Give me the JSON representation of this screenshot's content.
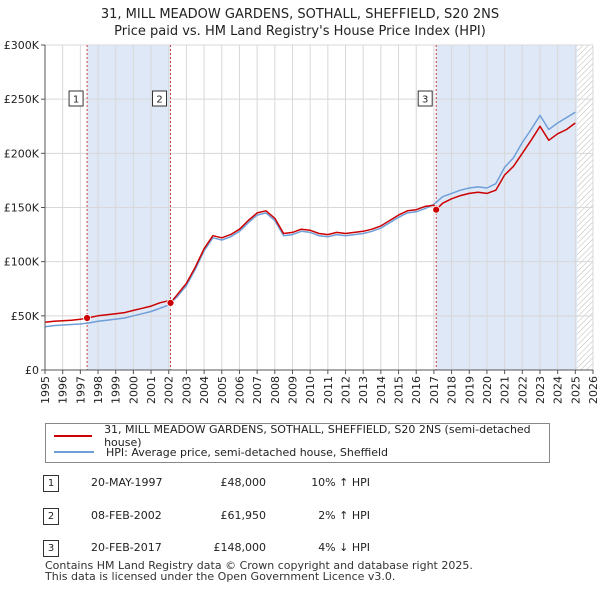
{
  "header": {
    "title_line1": "31, MILL MEADOW GARDENS, SOTHALL, SHEFFIELD, S20 2NS",
    "title_line2": "Price paid vs. HM Land Registry's House Price Index (HPI)"
  },
  "chart_data": {
    "type": "line",
    "title": "31, MILL MEADOW GARDENS, SOTHALL, SHEFFIELD, S20 2NS",
    "subtitle": "Price paid vs. HM Land Registry's House Price Index (HPI)",
    "xlabel": "",
    "ylabel": "",
    "xlim": [
      1995,
      2026
    ],
    "ylim": [
      0,
      300000
    ],
    "yticks": [
      0,
      50000,
      100000,
      150000,
      200000,
      250000,
      300000
    ],
    "ytick_labels": [
      "£0",
      "£50K",
      "£100K",
      "£150K",
      "£200K",
      "£250K",
      "£300K"
    ],
    "xticks": [
      1995,
      1996,
      1997,
      1998,
      1999,
      2000,
      2001,
      2002,
      2003,
      2004,
      2005,
      2006,
      2007,
      2008,
      2009,
      2010,
      2011,
      2012,
      2013,
      2014,
      2015,
      2016,
      2017,
      2018,
      2019,
      2020,
      2021,
      2022,
      2023,
      2024,
      2025,
      2026
    ],
    "xtick_labels": [
      "1995",
      "1996",
      "1997",
      "1998",
      "1999",
      "2000",
      "2001",
      "2002",
      "2003",
      "2004",
      "2005",
      "2006",
      "2007",
      "2008",
      "2009",
      "2010",
      "2011",
      "2012",
      "2013",
      "2014",
      "2015",
      "2016",
      "2017",
      "2018",
      "2019",
      "2020",
      "2021",
      "2022",
      "2023",
      "2024",
      "2025",
      "2026"
    ],
    "grid": true,
    "shaded_periods": [
      [
        1997.38,
        2002.1
      ],
      [
        2017.13,
        2025.1
      ]
    ],
    "forecast_hatch_start": 2025.1,
    "series": [
      {
        "name": "31, MILL MEADOW GARDENS, SOTHALL, SHEFFIELD, S20 2NS (semi-detached house)",
        "color": "#cc0000",
        "x": [
          1995.0,
          1995.5,
          1996.0,
          1996.5,
          1997.0,
          1997.38,
          1998.0,
          1998.5,
          1999.0,
          1999.5,
          2000.0,
          2000.5,
          2001.0,
          2001.5,
          2002.0,
          2002.1,
          2002.5,
          2003.0,
          2003.5,
          2004.0,
          2004.5,
          2005.0,
          2005.5,
          2006.0,
          2006.5,
          2007.0,
          2007.5,
          2008.0,
          2008.5,
          2009.0,
          2009.5,
          2010.0,
          2010.5,
          2011.0,
          2011.5,
          2012.0,
          2012.5,
          2013.0,
          2013.5,
          2014.0,
          2014.5,
          2015.0,
          2015.5,
          2016.0,
          2016.5,
          2017.0,
          2017.13,
          2017.5,
          2018.0,
          2018.5,
          2019.0,
          2019.5,
          2020.0,
          2020.5,
          2021.0,
          2021.5,
          2022.0,
          2022.5,
          2023.0,
          2023.5,
          2024.0,
          2024.5,
          2025.0
        ],
        "values": [
          44000,
          45000,
          45500,
          46000,
          46800,
          48000,
          50000,
          51000,
          52000,
          53000,
          55000,
          57000,
          59000,
          62000,
          64000,
          61950,
          70000,
          80000,
          95000,
          112000,
          124000,
          122000,
          125000,
          130000,
          138000,
          145000,
          147000,
          140000,
          126000,
          127000,
          130000,
          129000,
          126000,
          125000,
          127000,
          126000,
          127000,
          128000,
          130000,
          133000,
          138000,
          143000,
          147000,
          148000,
          151000,
          152000,
          148000,
          154000,
          158000,
          161000,
          163000,
          164000,
          163000,
          166000,
          180000,
          188000,
          200000,
          212000,
          225000,
          212000,
          218000,
          222000,
          228000
        ]
      },
      {
        "name": "HPI: Average price, semi-detached house, Sheffield",
        "color": "#6f9fd8",
        "x": [
          1995.0,
          1995.5,
          1996.0,
          1996.5,
          1997.0,
          1997.5,
          1998.0,
          1998.5,
          1999.0,
          1999.5,
          2000.0,
          2000.5,
          2001.0,
          2001.5,
          2002.0,
          2002.5,
          2003.0,
          2003.5,
          2004.0,
          2004.5,
          2005.0,
          2005.5,
          2006.0,
          2006.5,
          2007.0,
          2007.5,
          2008.0,
          2008.5,
          2009.0,
          2009.5,
          2010.0,
          2010.5,
          2011.0,
          2011.5,
          2012.0,
          2012.5,
          2013.0,
          2013.5,
          2014.0,
          2014.5,
          2015.0,
          2015.5,
          2016.0,
          2016.5,
          2017.0,
          2017.5,
          2018.0,
          2018.5,
          2019.0,
          2019.5,
          2020.0,
          2020.5,
          2021.0,
          2021.5,
          2022.0,
          2022.5,
          2023.0,
          2023.5,
          2024.0,
          2024.5,
          2025.0
        ],
        "values": [
          40000,
          41000,
          41500,
          42000,
          42500,
          43500,
          45000,
          46000,
          47000,
          48000,
          50000,
          52000,
          54000,
          57000,
          60000,
          68000,
          78000,
          93000,
          110000,
          122000,
          120000,
          123000,
          128000,
          136000,
          143000,
          145000,
          138000,
          124000,
          125000,
          128000,
          127000,
          124000,
          123000,
          125000,
          124000,
          125000,
          126000,
          128000,
          131000,
          136000,
          141000,
          145000,
          146000,
          149000,
          153000,
          160000,
          163000,
          166000,
          168000,
          169000,
          168000,
          172000,
          187000,
          196000,
          210000,
          222000,
          235000,
          222000,
          228000,
          233000,
          238000
        ]
      }
    ],
    "sales": [
      {
        "label": "1",
        "date": "20-MAY-1997",
        "x": 1997.38,
        "price": 48000
      },
      {
        "label": "2",
        "date": "08-FEB-2002",
        "x": 2002.1,
        "price": 61950
      },
      {
        "label": "3",
        "date": "20-FEB-2017",
        "x": 2017.13,
        "price": 148000
      }
    ]
  },
  "legend": {
    "items": [
      {
        "label": "31, MILL MEADOW GARDENS, SOTHALL, SHEFFIELD, S20 2NS (semi-detached house)",
        "color": "#cc0000"
      },
      {
        "label": "HPI: Average price, semi-detached house, Sheffield",
        "color": "#6f9fd8"
      }
    ]
  },
  "sales_table": [
    {
      "num": "1",
      "date": "20-MAY-1997",
      "price": "£48,000",
      "hpi": "10% ↑ HPI"
    },
    {
      "num": "2",
      "date": "08-FEB-2002",
      "price": "£61,950",
      "hpi": "2% ↑ HPI"
    },
    {
      "num": "3",
      "date": "20-FEB-2017",
      "price": "£148,000",
      "hpi": "4% ↓ HPI"
    }
  ],
  "footer": {
    "line1": "Contains HM Land Registry data © Crown copyright and database right 2025.",
    "line2": "This data is licensed under the Open Government Licence v3.0."
  }
}
